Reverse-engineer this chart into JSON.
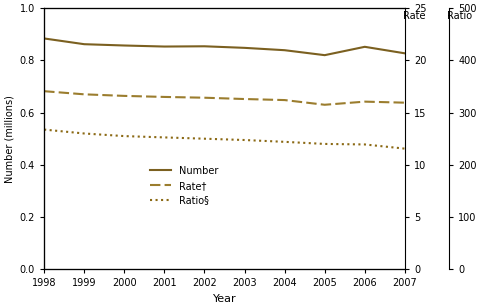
{
  "years": [
    1998,
    1999,
    2000,
    2001,
    2002,
    2003,
    2004,
    2005,
    2006,
    2007
  ],
  "number": [
    0.884,
    0.862,
    0.857,
    0.853,
    0.854,
    0.848,
    0.839,
    0.82,
    0.852,
    0.827
  ],
  "rate": [
    0.682,
    0.67,
    0.664,
    0.66,
    0.657,
    0.652,
    0.648,
    0.63,
    0.642,
    0.638
  ],
  "ratio": [
    0.535,
    0.52,
    0.51,
    0.505,
    0.5,
    0.495,
    0.488,
    0.48,
    0.478,
    0.462
  ],
  "number_color": "#7B6020",
  "rate_color": "#9B7D2E",
  "ratio_color": "#8B6914",
  "ylim": [
    0.0,
    1.0
  ],
  "ylabel_left": "Number (millions)",
  "xlabel": "Year",
  "rate_label": "Rate",
  "ratio_label": "Ratio",
  "rate_yticks": [
    0,
    5,
    10,
    15,
    20,
    25
  ],
  "ratio_yticks": [
    0,
    100,
    200,
    300,
    400,
    500
  ],
  "left_yticks": [
    0.0,
    0.2,
    0.4,
    0.6,
    0.8,
    1.0
  ],
  "legend_labels": [
    "Number",
    "Rate†",
    "Ratio§"
  ],
  "figsize": [
    4.81,
    3.08
  ],
  "dpi": 100
}
